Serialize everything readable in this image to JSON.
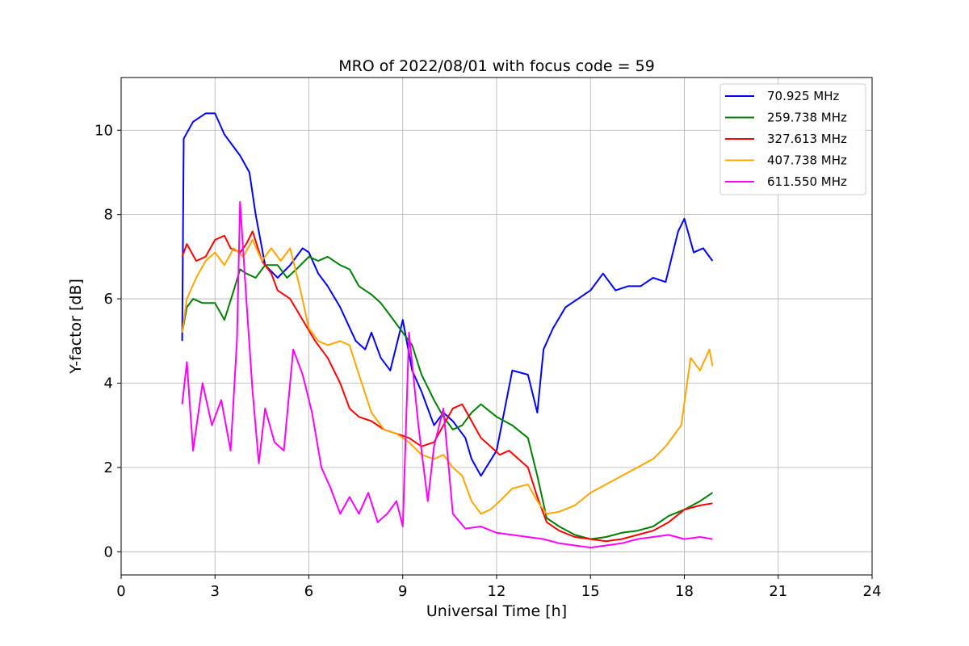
{
  "chart_data": {
    "type": "line",
    "title": "MRO of 2022/08/01 with focus code = 59",
    "xlabel": "Universal Time [h]",
    "ylabel": "Y-factor [dB]",
    "xlim": [
      0,
      24
    ],
    "ylim": [
      -0.55,
      11.25
    ],
    "xticks": [
      0,
      3,
      6,
      9,
      12,
      15,
      18,
      21,
      24
    ],
    "yticks": [
      0,
      2,
      4,
      6,
      8,
      10
    ],
    "grid": true,
    "legend_position": "top-right",
    "series": [
      {
        "name": "  70.925 MHz",
        "color": "#0000ff",
        "x": [
          1.95,
          2.0,
          2.3,
          2.7,
          3.0,
          3.3,
          3.5,
          3.8,
          4.1,
          4.3,
          4.6,
          5.0,
          5.4,
          5.8,
          6.0,
          6.3,
          6.6,
          7.0,
          7.5,
          7.8,
          8.0,
          8.3,
          8.6,
          9.0,
          9.3,
          9.6,
          10.0,
          10.3,
          10.6,
          11.0,
          11.2,
          11.5,
          12.0,
          12.5,
          13.0,
          13.3,
          13.5,
          13.8,
          14.2,
          14.6,
          15.0,
          15.4,
          15.8,
          16.2,
          16.6,
          17.0,
          17.4,
          17.8,
          18.0,
          18.3,
          18.6,
          18.9
        ],
        "y": [
          5.0,
          9.8,
          10.2,
          10.4,
          10.4,
          9.9,
          9.7,
          9.4,
          9.0,
          8.0,
          6.8,
          6.5,
          6.8,
          7.2,
          7.1,
          6.6,
          6.3,
          5.8,
          5.0,
          4.8,
          5.2,
          4.6,
          4.3,
          5.5,
          4.3,
          3.8,
          3.0,
          3.3,
          3.1,
          2.7,
          2.2,
          1.8,
          2.4,
          4.3,
          4.2,
          3.3,
          4.8,
          5.3,
          5.8,
          6.0,
          6.2,
          6.6,
          6.2,
          6.3,
          6.3,
          6.5,
          6.4,
          7.6,
          7.9,
          7.1,
          7.2,
          6.9
        ]
      },
      {
        "name": "259.738 MHz",
        "color": "#008000",
        "x": [
          1.95,
          2.1,
          2.3,
          2.6,
          3.0,
          3.3,
          3.6,
          3.8,
          4.0,
          4.3,
          4.6,
          5.0,
          5.3,
          5.6,
          6.0,
          6.3,
          6.6,
          7.0,
          7.3,
          7.6,
          8.0,
          8.3,
          8.6,
          9.0,
          9.3,
          9.6,
          10.0,
          10.3,
          10.6,
          10.9,
          11.2,
          11.5,
          12.0,
          12.5,
          13.0,
          13.3,
          13.6,
          14.0,
          14.5,
          15.0,
          15.5,
          16.0,
          16.5,
          17.0,
          17.5,
          18.0,
          18.5,
          18.9
        ],
        "y": [
          5.2,
          5.8,
          6.0,
          5.9,
          5.9,
          5.5,
          6.2,
          6.7,
          6.6,
          6.5,
          6.8,
          6.8,
          6.5,
          6.7,
          7.0,
          6.9,
          7.0,
          6.8,
          6.7,
          6.3,
          6.1,
          5.9,
          5.6,
          5.2,
          4.9,
          4.2,
          3.6,
          3.2,
          2.9,
          3.0,
          3.3,
          3.5,
          3.2,
          3.0,
          2.7,
          1.8,
          0.8,
          0.6,
          0.4,
          0.3,
          0.35,
          0.45,
          0.5,
          0.6,
          0.85,
          1.0,
          1.2,
          1.4
        ]
      },
      {
        "name": "327.613 MHz",
        "color": "#ff0000",
        "x": [
          1.95,
          2.1,
          2.4,
          2.7,
          3.0,
          3.3,
          3.5,
          3.8,
          4.0,
          4.2,
          4.5,
          4.8,
          5.0,
          5.4,
          5.8,
          6.2,
          6.6,
          7.0,
          7.3,
          7.6,
          8.0,
          8.4,
          8.8,
          9.2,
          9.6,
          10.0,
          10.3,
          10.6,
          10.9,
          11.2,
          11.5,
          11.8,
          12.1,
          12.4,
          12.7,
          13.0,
          13.3,
          13.6,
          14.0,
          14.5,
          15.0,
          15.5,
          16.0,
          16.5,
          17.0,
          17.5,
          18.0,
          18.5,
          18.9
        ],
        "y": [
          7.0,
          7.3,
          6.9,
          7.0,
          7.4,
          7.5,
          7.2,
          7.1,
          7.3,
          7.6,
          6.9,
          6.6,
          6.2,
          6.0,
          5.5,
          5.0,
          4.6,
          4.0,
          3.4,
          3.2,
          3.1,
          2.9,
          2.8,
          2.7,
          2.5,
          2.6,
          3.0,
          3.4,
          3.5,
          3.1,
          2.7,
          2.5,
          2.3,
          2.4,
          2.2,
          2.0,
          1.3,
          0.7,
          0.5,
          0.35,
          0.3,
          0.25,
          0.3,
          0.4,
          0.5,
          0.7,
          1.0,
          1.1,
          1.15
        ]
      },
      {
        "name": "407.738 MHz",
        "color": "#ffa500",
        "x": [
          1.95,
          2.1,
          2.4,
          2.7,
          3.0,
          3.3,
          3.6,
          3.9,
          4.2,
          4.5,
          4.8,
          5.1,
          5.4,
          5.7,
          6.0,
          6.3,
          6.6,
          7.0,
          7.3,
          7.6,
          8.0,
          8.4,
          8.8,
          9.2,
          9.6,
          10.0,
          10.3,
          10.6,
          10.9,
          11.2,
          11.5,
          11.8,
          12.1,
          12.5,
          13.0,
          13.3,
          13.6,
          14.0,
          14.5,
          15.0,
          15.5,
          16.0,
          16.5,
          17.0,
          17.4,
          17.7,
          17.9,
          18.2,
          18.5,
          18.8,
          18.9
        ],
        "y": [
          5.2,
          6.0,
          6.5,
          6.9,
          7.1,
          6.8,
          7.2,
          7.0,
          7.4,
          6.9,
          7.2,
          6.9,
          7.2,
          6.3,
          5.3,
          5.0,
          4.9,
          5.0,
          4.9,
          4.2,
          3.3,
          2.9,
          2.8,
          2.6,
          2.3,
          2.2,
          2.3,
          2.0,
          1.8,
          1.2,
          0.9,
          1.0,
          1.2,
          1.5,
          1.6,
          1.2,
          0.9,
          0.95,
          1.1,
          1.4,
          1.6,
          1.8,
          2.0,
          2.2,
          2.5,
          2.8,
          3.0,
          4.6,
          4.3,
          4.8,
          4.4
        ]
      },
      {
        "name": "611.550 MHz",
        "color": "#ff00ff",
        "x": [
          1.95,
          2.1,
          2.3,
          2.6,
          2.9,
          3.2,
          3.5,
          3.7,
          3.8,
          4.0,
          4.2,
          4.4,
          4.6,
          4.9,
          5.2,
          5.5,
          5.8,
          6.1,
          6.4,
          6.7,
          7.0,
          7.3,
          7.6,
          7.9,
          8.2,
          8.5,
          8.8,
          9.0,
          9.2,
          9.5,
          9.8,
          10.0,
          10.3,
          10.6,
          11.0,
          11.5,
          12.0,
          12.5,
          13.0,
          13.5,
          14.0,
          14.5,
          15.0,
          15.5,
          16.0,
          16.5,
          17.0,
          17.5,
          18.0,
          18.5,
          18.9
        ],
        "y": [
          3.5,
          4.5,
          2.4,
          4.0,
          3.0,
          3.6,
          2.4,
          5.0,
          8.3,
          6.0,
          3.8,
          2.1,
          3.4,
          2.6,
          2.4,
          4.8,
          4.2,
          3.3,
          2.0,
          1.5,
          0.9,
          1.3,
          0.9,
          1.4,
          0.7,
          0.9,
          1.2,
          0.6,
          5.2,
          3.0,
          1.2,
          2.5,
          3.4,
          0.9,
          0.55,
          0.6,
          0.45,
          0.4,
          0.35,
          0.3,
          0.2,
          0.15,
          0.1,
          0.15,
          0.2,
          0.3,
          0.35,
          0.4,
          0.3,
          0.35,
          0.3
        ]
      }
    ]
  }
}
